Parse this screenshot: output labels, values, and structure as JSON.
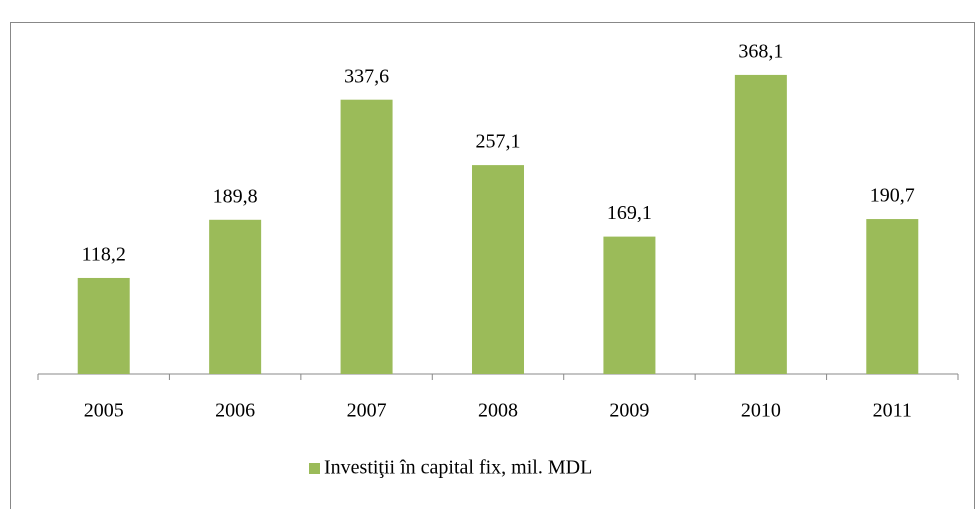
{
  "chart_data": {
    "type": "bar",
    "categories": [
      "2005",
      "2006",
      "2007",
      "2008",
      "2009",
      "2010",
      "2011"
    ],
    "series": [
      {
        "name": "Investiţii în capital fix, mil. MDL",
        "color": "#9bbb59",
        "values": [
          118.2,
          189.8,
          337.6,
          257.1,
          169.1,
          368.1,
          190.7
        ],
        "value_labels": [
          "118,2",
          "189,8",
          "337,6",
          "257,1",
          "169,1",
          "368,1",
          "190,7"
        ]
      }
    ],
    "ylim": [
      0,
      400
    ],
    "legend": "bottom"
  }
}
